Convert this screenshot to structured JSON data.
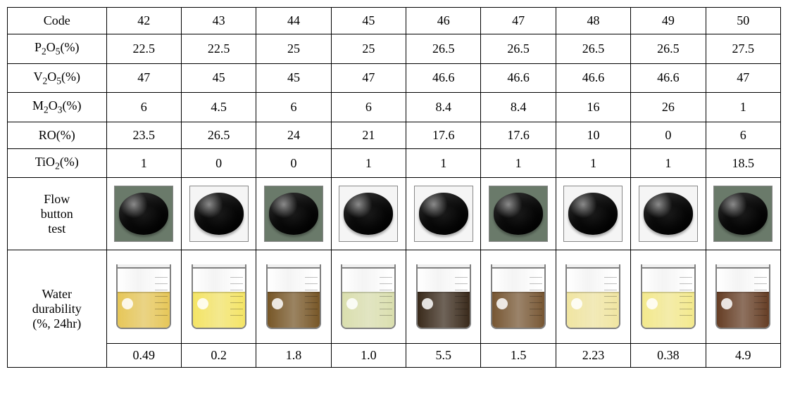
{
  "table": {
    "row_headers": {
      "code": "Code",
      "p2o5": "P2O5(%)",
      "v2o5": "V2O5(%)",
      "m2o3": "M2O3(%)",
      "ro": "RO(%)",
      "tio2": "TiO2(%)",
      "flow": "Flow button test",
      "water": "Water durability (%, 24hr)"
    },
    "columns": [
      "42",
      "43",
      "44",
      "45",
      "46",
      "47",
      "48",
      "49",
      "50"
    ],
    "p2o5": [
      "22.5",
      "22.5",
      "25",
      "25",
      "26.5",
      "26.5",
      "26.5",
      "26.5",
      "27.5"
    ],
    "v2o5": [
      "47",
      "45",
      "45",
      "47",
      "46.6",
      "46.6",
      "46.6",
      "46.6",
      "47"
    ],
    "m2o3": [
      "6",
      "4.5",
      "6",
      "6",
      "8.4",
      "8.4",
      "16",
      "26",
      "1"
    ],
    "ro": [
      "23.5",
      "26.5",
      "24",
      "21",
      "17.6",
      "17.6",
      "10",
      "0",
      "6"
    ],
    "tio2": [
      "1",
      "0",
      "0",
      "1",
      "1",
      "1",
      "1",
      "1",
      "18.5"
    ],
    "water_values": [
      "0.49",
      "0.2",
      "1.8",
      "1.0",
      "5.5",
      "1.5",
      "2.23",
      "0.38",
      "4.9"
    ],
    "flow_samples": [
      {
        "bg": "#6a7a6a"
      },
      {
        "bg": "#f5f5f5"
      },
      {
        "bg": "#6a7a6a"
      },
      {
        "bg": "#f5f5f5"
      },
      {
        "bg": "#f5f5f5"
      },
      {
        "bg": "#6a7a6a"
      },
      {
        "bg": "#f5f5f5"
      },
      {
        "bg": "#f5f5f5"
      },
      {
        "bg": "#6a7a6a"
      }
    ],
    "water_samples": [
      {
        "fill": 55,
        "color": "#e4c24c"
      },
      {
        "fill": 55,
        "color": "#f3e25a"
      },
      {
        "fill": 55,
        "color": "#6d4a17"
      },
      {
        "fill": 55,
        "color": "#d7dca8"
      },
      {
        "fill": 55,
        "color": "#2b1a0a"
      },
      {
        "fill": 55,
        "color": "#6d4a24"
      },
      {
        "fill": 55,
        "color": "#efe39a"
      },
      {
        "fill": 55,
        "color": "#f2e784"
      },
      {
        "fill": 55,
        "color": "#5a2f14"
      }
    ]
  },
  "style": {
    "border_color": "#000000",
    "font_family": "Times New Roman",
    "font_size_pt": 14,
    "background": "#ffffff"
  }
}
